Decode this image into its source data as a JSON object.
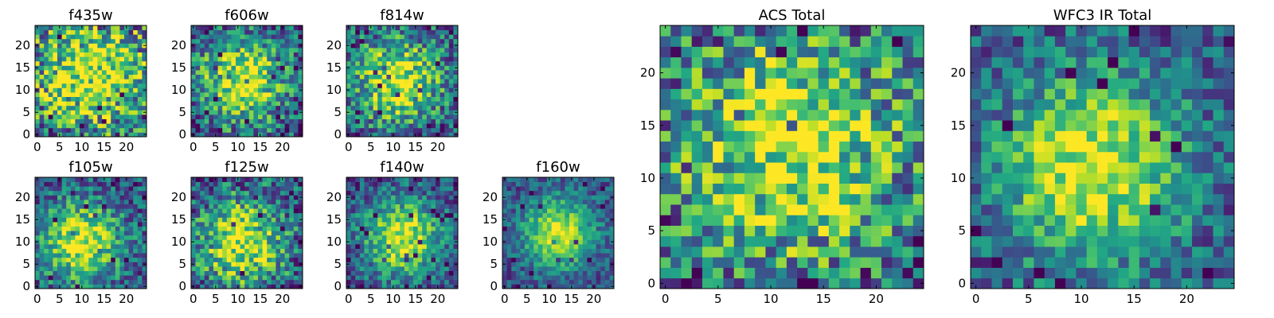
{
  "chart_data": {
    "type": "heatmap",
    "colormap": "viridis",
    "panels": [
      {
        "id": "f435w",
        "title": "f435w",
        "xticks": [
          0,
          5,
          10,
          15,
          20
        ],
        "yticks": [
          0,
          5,
          10,
          15,
          20
        ],
        "xlim": [
          0,
          24
        ],
        "ylim": [
          0,
          24
        ],
        "center": [
          12,
          14
        ],
        "spread": 10,
        "noise": 0.45,
        "seed": 11
      },
      {
        "id": "f606w",
        "title": "f606w",
        "xticks": [
          0,
          5,
          10,
          15,
          20
        ],
        "yticks": [
          0,
          5,
          10,
          15,
          20
        ],
        "xlim": [
          0,
          24
        ],
        "ylim": [
          0,
          24
        ],
        "center": [
          11,
          12
        ],
        "spread": 7,
        "noise": 0.35,
        "seed": 23
      },
      {
        "id": "f814w",
        "title": "f814w",
        "xticks": [
          0,
          5,
          10,
          15,
          20
        ],
        "yticks": [
          0,
          5,
          10,
          15,
          20
        ],
        "xlim": [
          0,
          24
        ],
        "ylim": [
          0,
          24
        ],
        "center": [
          11,
          12
        ],
        "spread": 7,
        "noise": 0.35,
        "seed": 37
      },
      {
        "id": "f105w",
        "title": "f105w",
        "xticks": [
          0,
          5,
          10,
          15,
          20
        ],
        "yticks": [
          0,
          5,
          10,
          15,
          20
        ],
        "xlim": [
          0,
          24
        ],
        "ylim": [
          0,
          24
        ],
        "center": [
          10,
          10
        ],
        "spread": 6.5,
        "noise": 0.28,
        "seed": 41
      },
      {
        "id": "f125w",
        "title": "f125w",
        "xticks": [
          0,
          5,
          10,
          15,
          20
        ],
        "yticks": [
          0,
          5,
          10,
          15,
          20
        ],
        "xlim": [
          0,
          24
        ],
        "ylim": [
          0,
          24
        ],
        "center": [
          11,
          10
        ],
        "spread": 7,
        "noise": 0.35,
        "seed": 53
      },
      {
        "id": "f140w",
        "title": "f140w",
        "xticks": [
          0,
          5,
          10,
          15,
          20
        ],
        "yticks": [
          0,
          5,
          10,
          15,
          20
        ],
        "xlim": [
          0,
          24
        ],
        "ylim": [
          0,
          24
        ],
        "center": [
          12,
          11
        ],
        "spread": 6,
        "noise": 0.25,
        "seed": 67
      },
      {
        "id": "f160w",
        "title": "f160w",
        "xticks": [
          0,
          5,
          10,
          15,
          20
        ],
        "yticks": [
          0,
          5,
          10,
          15,
          20
        ],
        "xlim": [
          0,
          24
        ],
        "ylim": [
          0,
          24
        ],
        "center": [
          12,
          12
        ],
        "spread": 5.5,
        "noise": 0.2,
        "seed": 79
      },
      {
        "id": "acs-total",
        "title": "ACS Total",
        "xticks": [
          0,
          5,
          10,
          15,
          20
        ],
        "yticks": [
          0,
          5,
          10,
          15,
          20
        ],
        "xlim": [
          0,
          24
        ],
        "ylim": [
          0,
          24
        ],
        "center": [
          12,
          13
        ],
        "spread": 8,
        "noise": 0.4,
        "seed": 97
      },
      {
        "id": "wfc3-ir-total",
        "title": "WFC3 IR Total",
        "xticks": [
          0,
          5,
          10,
          15,
          20
        ],
        "yticks": [
          0,
          5,
          10,
          15,
          20
        ],
        "xlim": [
          0,
          24
        ],
        "ylim": [
          0,
          24
        ],
        "center": [
          11,
          11
        ],
        "spread": 6.5,
        "noise": 0.25,
        "seed": 113
      }
    ]
  }
}
